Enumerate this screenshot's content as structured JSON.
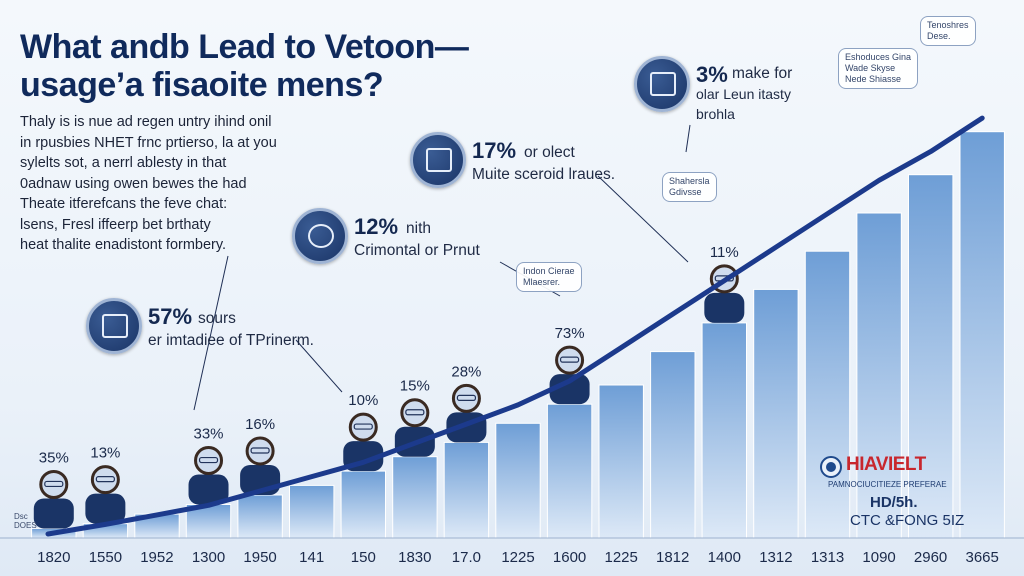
{
  "title": {
    "line1": "What andb Lead to Vetoon—",
    "line2": "usage’a fisaoite mens?"
  },
  "body_text": [
    "Thaly is is nue ad regen untry ihind onil",
    "in rpusbies NHET frnc prtierso, la at you",
    "sylelts sot, a nerrl ablesty in that",
    "0adnaw using owen bewes the had",
    "Theate itferefcans the feve chat:",
    "lsens, Fresl iffeerp bet brthaty",
    "heat thalite enadistont formbery."
  ],
  "callouts": [
    {
      "pct": "3%",
      "text": "make for",
      "text2": "olar Leun itasty",
      "text3": "brohla"
    },
    {
      "pct": "17%",
      "text": "or olect",
      "text2": "Muite sceroid lraues."
    },
    {
      "pct": "12%",
      "text": "nith",
      "text2": "Crimontal or Prnut"
    },
    {
      "pct": "57%",
      "text": "sours",
      "text2": "er imtadiee of TPrinerm."
    }
  ],
  "notes": [
    {
      "lines": [
        "Eshoduces Gina",
        "Wade Skyse",
        "Nede Shiasse"
      ]
    },
    {
      "lines": [
        "Shahersla",
        "Gdivsse"
      ]
    },
    {
      "lines": [
        "Indon Cierae",
        "Mlaesrer."
      ]
    },
    {
      "lines": [
        "Tenoshres",
        "Dese."
      ]
    }
  ],
  "brand": {
    "logo": "HIAVIELT",
    "tagline": "PAMNOCIUCITIEZE PREFERAE",
    "line1": "HD/5h.",
    "line2": "CTC &FONG 5IZ"
  },
  "corner_note": [
    "Dsc",
    "DOES"
  ],
  "colors": {
    "bar_top": "#6e9ed6",
    "bar_bottom": "#dde9f7",
    "trend": "#1c3a8c",
    "title": "#102a5c"
  },
  "chart_data": {
    "type": "bar",
    "title": "",
    "xlabel": "",
    "ylabel": "",
    "categories": [
      "1820",
      "1550",
      "1952",
      "1300",
      "1950",
      "141",
      "150",
      "1830",
      "17.0",
      "1225",
      "1600",
      "1225",
      "1812",
      "1400",
      "1312",
      "1313",
      "1090",
      "2960",
      "3665"
    ],
    "values": [
      2,
      3,
      5,
      7,
      9,
      11,
      14,
      17,
      20,
      24,
      28,
      32,
      39,
      45,
      52,
      60,
      68,
      76,
      85
    ],
    "ylim": [
      0,
      100
    ],
    "trend": [
      0,
      2,
      4,
      6,
      9,
      12,
      15,
      19,
      23,
      27,
      32,
      39,
      46,
      53,
      60,
      67,
      74,
      80,
      87
    ],
    "data_labels": [
      {
        "category": "1820",
        "value": 2,
        "label": "35%"
      },
      {
        "category": "1550",
        "value": 3,
        "label": "13%"
      },
      {
        "category": "1300",
        "value": 7,
        "label": "33%"
      },
      {
        "category": "1950",
        "value": 9,
        "label": "16%"
      },
      {
        "category": "150",
        "value": 14,
        "label": "10%"
      },
      {
        "category": "1830",
        "value": 17,
        "label": "15%"
      },
      {
        "category": "17.0",
        "value": 20,
        "label": "28%"
      },
      {
        "category": "1600",
        "value": 28,
        "label": "73%"
      },
      {
        "category": "1400",
        "value": 45,
        "label": "11%"
      }
    ],
    "grid": false,
    "legend": "none"
  }
}
